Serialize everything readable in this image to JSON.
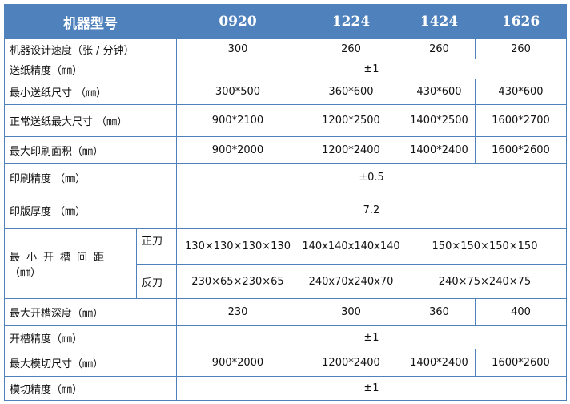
{
  "header": {
    "label": "机器型号",
    "models": [
      "0920",
      "1224",
      "1424",
      "1626"
    ]
  },
  "rows": {
    "speed": {
      "label": "机器设计速度（张 / 分钟）",
      "values": [
        "300",
        "260",
        "260",
        "260"
      ]
    },
    "feed_precision": {
      "label": "送纸精度（㎜）",
      "value": "±1"
    },
    "min_feed": {
      "label": "最小送纸尺寸 （㎜）",
      "values": [
        "300*500",
        "360*600",
        "430*600",
        "430*600"
      ]
    },
    "max_feed": {
      "label": "正常送纸最大尺寸 （㎜）",
      "values": [
        "900*2100",
        "1200*2500",
        "1400*2500",
        "1600*2700"
      ]
    },
    "max_print": {
      "label": "最大印刷面积（㎜）",
      "values": [
        "900*2000",
        "1200*2400",
        "1400*2400",
        "1600*2600"
      ]
    },
    "print_precision": {
      "label": "印刷精度 （㎜）",
      "value": "±0.5"
    },
    "plate_thickness": {
      "label": "印版厚度 （㎜）",
      "value": "7.2"
    },
    "min_slot": {
      "label": "最小开槽间距",
      "unit": "（㎜）",
      "forward": {
        "label": "正刀",
        "values": [
          "130×130×130×130",
          "140x140x140x140",
          "150×150×150×150"
        ]
      },
      "reverse": {
        "label": "反刀",
        "values": [
          "230×65×230×65",
          "240x70x240x70",
          "240×75×240×75"
        ]
      }
    },
    "max_slot_depth": {
      "label": "最大开槽深度（㎜）",
      "values": [
        "230",
        "300",
        "360",
        "400"
      ]
    },
    "slot_precision": {
      "label": "开槽精度（㎜）",
      "value": "±1"
    },
    "max_die_cut": {
      "label": "最大模切尺寸（㎜）",
      "values": [
        "900*2000",
        "1200*2400",
        "1400*2400",
        "1600*2600"
      ]
    },
    "die_cut_precision": {
      "label": "模切精度（㎜）",
      "value": "±1"
    }
  },
  "colors": {
    "header_bg": "#4f81bd",
    "border": "#4f81bd",
    "header_text": "#ffffff"
  }
}
